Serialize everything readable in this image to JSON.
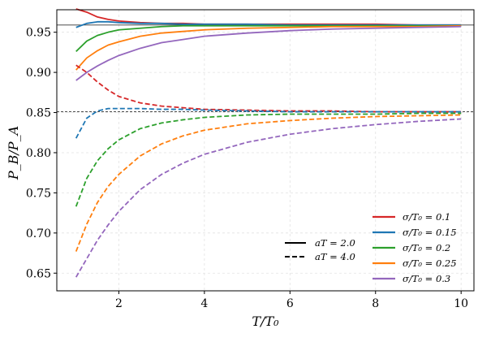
{
  "chart_data": {
    "type": "line",
    "xlabel": "T/T₀",
    "ylabel": "P_B/P_A",
    "xlim": [
      0.55,
      10.3
    ],
    "ylim": [
      0.628,
      0.978
    ],
    "xticks": [
      2,
      4,
      6,
      8,
      10
    ],
    "xtick_labels": [
      "2",
      "4",
      "6",
      "8",
      "10"
    ],
    "yticks": [
      0.65,
      0.7,
      0.75,
      0.8,
      0.85,
      0.9,
      0.95
    ],
    "ytick_labels": [
      "0.65",
      "0.70",
      "0.75",
      "0.80",
      "0.85",
      "0.90",
      "0.95"
    ],
    "grid": true,
    "reference_lines": [
      {
        "y": 0.959,
        "style": "solid"
      },
      {
        "y": 0.851,
        "style": "dashed"
      }
    ],
    "linestyle_legend": {
      "placement": "lower-center",
      "entries": [
        {
          "label": "aT = 2.0",
          "style": "solid"
        },
        {
          "label": "aT = 4.0",
          "style": "dashed"
        }
      ]
    },
    "color_legend": {
      "placement": "lower-right",
      "entries": [
        {
          "label": "σ/T₀ = 0.1",
          "color": "#d62728"
        },
        {
          "label": "σ/T₀ = 0.15",
          "color": "#1f77b4"
        },
        {
          "label": "σ/T₀ = 0.2",
          "color": "#2ca02c"
        },
        {
          "label": "σ/T₀ = 0.25",
          "color": "#ff7f0e"
        },
        {
          "label": "σ/T₀ = 0.3",
          "color": "#9467bd"
        }
      ]
    },
    "x": [
      1.0,
      1.25,
      1.5,
      1.75,
      2.0,
      2.5,
      3.0,
      3.5,
      4.0,
      5.0,
      6.0,
      7.0,
      8.0,
      9.0,
      10.0
    ],
    "series": [
      {
        "sigma": "0.1",
        "aT": "2.0",
        "style": "solid",
        "color": "#d62728",
        "values": [
          0.979,
          0.975,
          0.969,
          0.966,
          0.964,
          0.962,
          0.961,
          0.961,
          0.96,
          0.96,
          0.96,
          0.96,
          0.96,
          0.959,
          0.959
        ]
      },
      {
        "sigma": "0.15",
        "aT": "2.0",
        "style": "solid",
        "color": "#1f77b4",
        "values": [
          0.956,
          0.961,
          0.963,
          0.963,
          0.962,
          0.961,
          0.961,
          0.96,
          0.96,
          0.96,
          0.959,
          0.959,
          0.959,
          0.959,
          0.959
        ]
      },
      {
        "sigma": "0.2",
        "aT": "2.0",
        "style": "solid",
        "color": "#2ca02c",
        "values": [
          0.926,
          0.939,
          0.946,
          0.95,
          0.953,
          0.955,
          0.957,
          0.958,
          0.958,
          0.958,
          0.958,
          0.958,
          0.958,
          0.958,
          0.958
        ]
      },
      {
        "sigma": "0.25",
        "aT": "2.0",
        "style": "solid",
        "color": "#ff7f0e",
        "values": [
          0.903,
          0.918,
          0.927,
          0.934,
          0.938,
          0.945,
          0.949,
          0.951,
          0.953,
          0.955,
          0.956,
          0.957,
          0.957,
          0.957,
          0.958
        ]
      },
      {
        "sigma": "0.3",
        "aT": "2.0",
        "style": "solid",
        "color": "#9467bd",
        "values": [
          0.89,
          0.9,
          0.908,
          0.915,
          0.921,
          0.93,
          0.937,
          0.941,
          0.945,
          0.949,
          0.952,
          0.954,
          0.955,
          0.956,
          0.957
        ]
      },
      {
        "sigma": "0.1",
        "aT": "4.0",
        "style": "dashed",
        "color": "#d62728",
        "values": [
          0.909,
          0.9,
          0.888,
          0.878,
          0.87,
          0.862,
          0.858,
          0.856,
          0.854,
          0.853,
          0.852,
          0.852,
          0.851,
          0.851,
          0.851
        ]
      },
      {
        "sigma": "0.15",
        "aT": "4.0",
        "style": "dashed",
        "color": "#1f77b4",
        "values": [
          0.818,
          0.843,
          0.852,
          0.855,
          0.855,
          0.855,
          0.854,
          0.854,
          0.853,
          0.852,
          0.851,
          0.851,
          0.851,
          0.851,
          0.851
        ]
      },
      {
        "sigma": "0.2",
        "aT": "4.0",
        "style": "dashed",
        "color": "#2ca02c",
        "values": [
          0.733,
          0.768,
          0.79,
          0.805,
          0.816,
          0.83,
          0.837,
          0.841,
          0.844,
          0.847,
          0.848,
          0.848,
          0.848,
          0.849,
          0.849
        ]
      },
      {
        "sigma": "0.25",
        "aT": "4.0",
        "style": "dashed",
        "color": "#ff7f0e",
        "values": [
          0.677,
          0.711,
          0.738,
          0.758,
          0.773,
          0.796,
          0.811,
          0.821,
          0.828,
          0.836,
          0.84,
          0.843,
          0.845,
          0.846,
          0.847
        ]
      },
      {
        "sigma": "0.3",
        "aT": "4.0",
        "style": "dashed",
        "color": "#9467bd",
        "values": [
          0.645,
          0.668,
          0.691,
          0.71,
          0.727,
          0.754,
          0.773,
          0.787,
          0.798,
          0.813,
          0.823,
          0.83,
          0.835,
          0.839,
          0.842
        ]
      }
    ]
  }
}
